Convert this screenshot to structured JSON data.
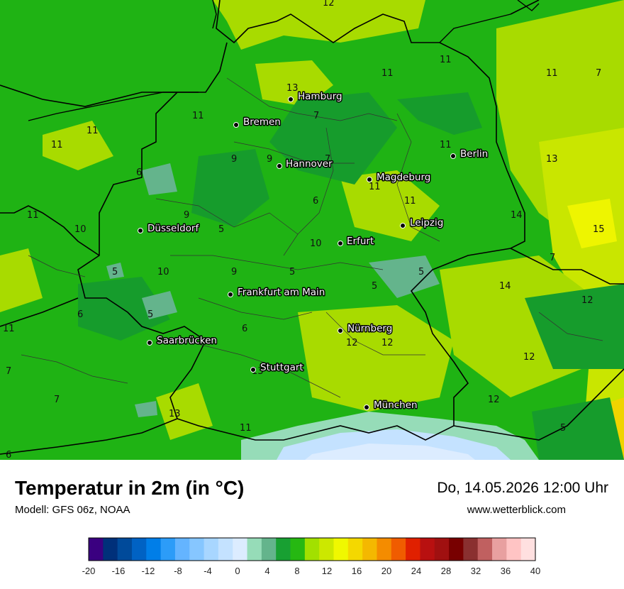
{
  "title": "Temperatur in 2m (in °C)",
  "model": "Modell: GFS 06z, NOAA",
  "datetime": "Do, 14.05.2026 12:00 Uhr",
  "website": "www.wetterblick.com",
  "cities": [
    "Hamburg",
    "Bremen",
    "Hannover",
    "Berlin",
    "Magdeburg",
    "Leipzig",
    "Düsseldorf",
    "Erfurt",
    "Frankfurt am Main",
    "Nürnberg",
    "Saarbrücken",
    "Stuttgart",
    "München"
  ],
  "isoline_labels": [
    "11",
    "7",
    "6",
    "9",
    "5",
    "10",
    "12",
    "13",
    "14",
    "15"
  ],
  "legend": {
    "ticks": [
      "-20",
      "-16",
      "-12",
      "-8",
      "-4",
      "0",
      "4",
      "8",
      "12",
      "16",
      "20",
      "24",
      "28",
      "32",
      "36",
      "40"
    ],
    "colors": [
      "#3a0080",
      "#00307a",
      "#004a9a",
      "#0062c4",
      "#007ee8",
      "#2c9cf8",
      "#64b4ff",
      "#86c6ff",
      "#a8d6ff",
      "#c4e2ff",
      "#dcecff",
      "#96dcb8",
      "#64b48c",
      "#18a032",
      "#26b812",
      "#a2e000",
      "#cce800",
      "#f0f800",
      "#f4d800",
      "#f4b800",
      "#f48c00",
      "#f05c00",
      "#e02000",
      "#b81010",
      "#a01010",
      "#780000",
      "#8a3030",
      "#c06060",
      "#e8a0a0",
      "#ffc4c4",
      "#ffe0e0"
    ]
  }
}
